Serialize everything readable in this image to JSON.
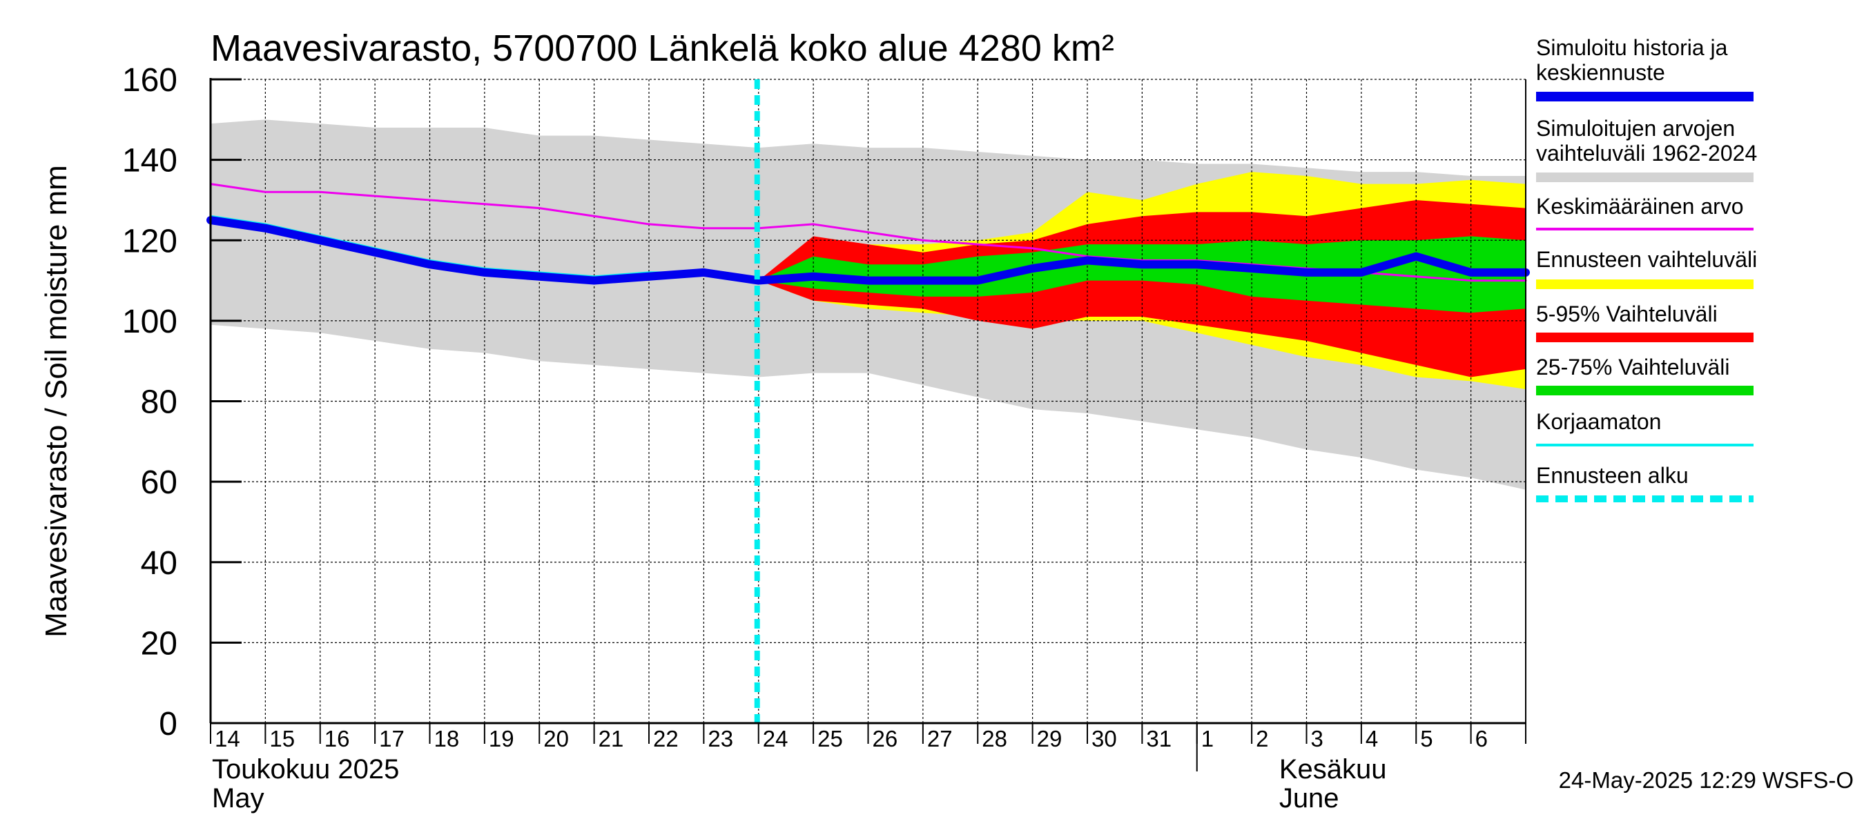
{
  "chart_data": {
    "type": "area",
    "title": "Maavesivarasto, 5700700 Länkelä koko alue 4280 km²",
    "ylabel": "Maavesivarasto / Soil moisture   mm",
    "ylim": [
      0,
      160
    ],
    "yticks": [
      0,
      20,
      40,
      60,
      80,
      100,
      120,
      140,
      160
    ],
    "grid": true,
    "x_day_range": [
      14,
      38
    ],
    "x_tick_labels": [
      "14",
      "15",
      "16",
      "17",
      "18",
      "19",
      "20",
      "21",
      "22",
      "23",
      "24",
      "25",
      "26",
      "27",
      "28",
      "29",
      "30",
      "31",
      "1",
      "2",
      "3",
      "4",
      "5",
      "6"
    ],
    "month_labels": [
      {
        "fi": "Toukokuu  2025",
        "en": "May"
      },
      {
        "fi": "Kesäkuu",
        "en": "June"
      }
    ],
    "forecast_start_day": 24,
    "series": [
      {
        "name": "Simuloitujen arvojen vaihteluväli 1962-2024",
        "kind": "band",
        "color": "#d3d3d3",
        "x": [
          14,
          15,
          16,
          17,
          18,
          19,
          20,
          21,
          22,
          23,
          24,
          25,
          26,
          27,
          28,
          29,
          30,
          31,
          32,
          33,
          34,
          35,
          36,
          37,
          38
        ],
        "upper": [
          149,
          150,
          149,
          148,
          148,
          148,
          146,
          146,
          145,
          144,
          143,
          144,
          143,
          143,
          142,
          141,
          140,
          140,
          139,
          139,
          138,
          137,
          137,
          136,
          136
        ],
        "lower": [
          99,
          98,
          97,
          95,
          93,
          92,
          90,
          89,
          88,
          87,
          86,
          87,
          87,
          84,
          81,
          78,
          77,
          75,
          73,
          71,
          68,
          66,
          63,
          61,
          58
        ]
      },
      {
        "name": "Ennusteen vaihteluväli",
        "kind": "band",
        "color": "#ffff00",
        "x": [
          24,
          25,
          26,
          27,
          28,
          29,
          30,
          31,
          32,
          33,
          34,
          35,
          36,
          37,
          38
        ],
        "upper": [
          110,
          120,
          119,
          119,
          120,
          122,
          132,
          130,
          134,
          137,
          136,
          134,
          134,
          135,
          134
        ],
        "lower": [
          110,
          105,
          103,
          102,
          101,
          100,
          100,
          100,
          97,
          94,
          91,
          89,
          86,
          85,
          83
        ]
      },
      {
        "name": "5-95% Vaihteluväli",
        "kind": "band",
        "color": "#ff0000",
        "x": [
          24,
          25,
          26,
          27,
          28,
          29,
          30,
          31,
          32,
          33,
          34,
          35,
          36,
          37,
          38
        ],
        "upper": [
          110,
          121,
          119,
          117,
          119,
          120,
          124,
          126,
          127,
          127,
          126,
          128,
          130,
          129,
          128
        ],
        "lower": [
          110,
          105,
          104,
          103,
          100,
          98,
          101,
          101,
          99,
          97,
          95,
          92,
          89,
          86,
          88
        ]
      },
      {
        "name": "25-75% Vaihteluväli",
        "kind": "band",
        "color": "#00dd00",
        "x": [
          24,
          25,
          26,
          27,
          28,
          29,
          30,
          31,
          32,
          33,
          34,
          35,
          36,
          37,
          38
        ],
        "upper": [
          110,
          116,
          114,
          114,
          116,
          117,
          119,
          119,
          119,
          120,
          119,
          120,
          120,
          121,
          120
        ],
        "lower": [
          110,
          108,
          107,
          106,
          106,
          107,
          110,
          110,
          109,
          106,
          105,
          104,
          103,
          102,
          103
        ]
      },
      {
        "name": "Keskimääräinen arvo",
        "kind": "line",
        "color": "#ee00ee",
        "width": 3,
        "x": [
          14,
          15,
          16,
          17,
          18,
          19,
          20,
          21,
          22,
          23,
          24,
          25,
          26,
          27,
          28,
          29,
          30,
          31,
          32,
          33,
          34,
          35,
          36,
          37,
          38
        ],
        "values": [
          134,
          132,
          132,
          131,
          130,
          129,
          128,
          126,
          124,
          123,
          123,
          124,
          122,
          120,
          119,
          118,
          116,
          115,
          115,
          114,
          113,
          112,
          111,
          110,
          110
        ]
      },
      {
        "name": "Korjaamaton",
        "kind": "line",
        "color": "#00eeee",
        "width": 3,
        "x": [
          14,
          15,
          16,
          17,
          18,
          19,
          20,
          21,
          22,
          23,
          24
        ],
        "values": [
          126,
          124,
          121,
          118,
          115,
          113,
          112,
          111,
          112,
          112,
          110
        ]
      },
      {
        "name": "Simuloitu historia ja keskiennuste",
        "kind": "line",
        "color": "#0000ee",
        "width": 12,
        "x": [
          14,
          15,
          16,
          17,
          18,
          19,
          20,
          21,
          22,
          23,
          24,
          25,
          26,
          27,
          28,
          29,
          30,
          31,
          32,
          33,
          34,
          35,
          36,
          37,
          38
        ],
        "values": [
          125,
          123,
          120,
          117,
          114,
          112,
          111,
          110,
          111,
          112,
          110,
          111,
          110,
          110,
          110,
          113,
          115,
          114,
          114,
          113,
          112,
          112,
          116,
          112,
          112
        ]
      }
    ],
    "legend": [
      {
        "label": "Simuloitu historia ja keskiennuste",
        "color": "#0000ee",
        "style": "thick"
      },
      {
        "label": "Simuloitujen arvojen vaihteluväli 1962-2024",
        "color": "#d3d3d3",
        "style": "thick"
      },
      {
        "label": "Keskimääräinen arvo",
        "color": "#ee00ee",
        "style": "thin"
      },
      {
        "label": "Ennusteen vaihteluväli",
        "color": "#ffff00",
        "style": "thick"
      },
      {
        "label": "5-95% Vaihteluväli",
        "color": "#ff0000",
        "style": "thick"
      },
      {
        "label": "25-75% Vaihteluväli",
        "color": "#00dd00",
        "style": "thick"
      },
      {
        "label": "Korjaamaton",
        "color": "#00eeee",
        "style": "thin"
      },
      {
        "label": "Ennusteen alku",
        "color": "#00eeee",
        "style": "dashed"
      }
    ],
    "footer": "24-May-2025 12:29 WSFS-O"
  }
}
